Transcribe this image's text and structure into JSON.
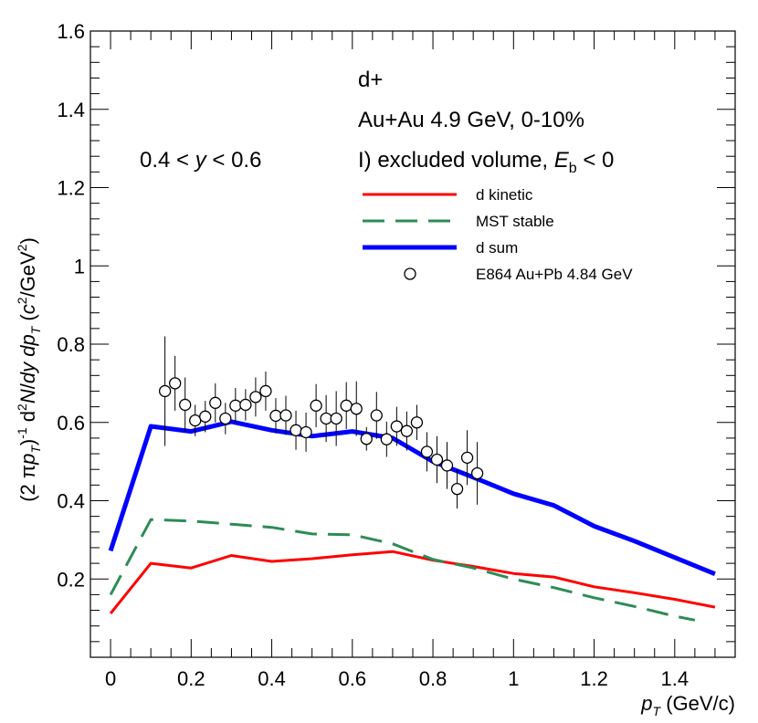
{
  "chart_data": {
    "type": "line",
    "annotations": {
      "line1": "d+",
      "line2": "Au+Au 4.9 GeV, 0-10%",
      "line3_prefix": "I) excluded volume, ",
      "line3_E": "E",
      "line3_b": "b",
      "line3_suffix": " < 0",
      "rapidity": {
        "pre": "0.4 < ",
        "var": "y",
        "post": " < 0.6"
      }
    },
    "xlabel": {
      "var": "p",
      "sub": "T",
      "unit": " (GeV/c)"
    },
    "ylabel": "(2 πpT)-1 d2N/dy dpT (c2/GeV2)",
    "xlim": [
      -0.05,
      1.55
    ],
    "ylim": [
      0,
      1.6
    ],
    "x_ticks": [
      {
        "v": 0,
        "label": "0"
      },
      {
        "v": 0.2,
        "label": "0.2"
      },
      {
        "v": 0.4,
        "label": "0.4"
      },
      {
        "v": 0.6,
        "label": "0.6"
      },
      {
        "v": 0.8,
        "label": "0.8"
      },
      {
        "v": 1.0,
        "label": "1"
      },
      {
        "v": 1.2,
        "label": "1.2"
      },
      {
        "v": 1.4,
        "label": "1.4"
      }
    ],
    "y_ticks": [
      {
        "v": 0.2,
        "label": "0.2"
      },
      {
        "v": 0.4,
        "label": "0.4"
      },
      {
        "v": 0.6,
        "label": "0.6"
      },
      {
        "v": 0.8,
        "label": "0.8"
      },
      {
        "v": 1.0,
        "label": "1"
      },
      {
        "v": 1.2,
        "label": "1.2"
      },
      {
        "v": 1.4,
        "label": "1.4"
      },
      {
        "v": 1.6,
        "label": "1.6"
      }
    ],
    "legend_position": "top-right",
    "series": [
      {
        "name": "d kinetic",
        "style": "solid",
        "color": "#ff0000",
        "x": [
          0.0,
          0.1,
          0.2,
          0.3,
          0.4,
          0.5,
          0.6,
          0.7,
          0.8,
          0.9,
          1.0,
          1.1,
          1.2,
          1.3,
          1.4,
          1.5
        ],
        "y": [
          0.112,
          0.24,
          0.228,
          0.26,
          0.245,
          0.252,
          0.262,
          0.27,
          0.248,
          0.232,
          0.214,
          0.205,
          0.18,
          0.165,
          0.148,
          0.128
        ]
      },
      {
        "name": "MST stable",
        "style": "dashed",
        "color": "#2e8b57",
        "x": [
          0.0,
          0.1,
          0.2,
          0.3,
          0.4,
          0.5,
          0.6,
          0.7,
          0.8,
          0.9,
          1.0,
          1.1,
          1.2,
          1.3,
          1.4,
          1.45
        ],
        "y": [
          0.16,
          0.352,
          0.348,
          0.34,
          0.332,
          0.315,
          0.313,
          0.29,
          0.25,
          0.228,
          0.2,
          0.178,
          0.152,
          0.13,
          0.105,
          0.095
        ]
      },
      {
        "name": "d sum",
        "style": "solid-thick",
        "color": "#0000ff",
        "x": [
          0.0,
          0.1,
          0.2,
          0.3,
          0.4,
          0.5,
          0.6,
          0.7,
          0.8,
          0.9,
          1.0,
          1.1,
          1.2,
          1.3,
          1.4,
          1.5
        ],
        "y": [
          0.272,
          0.59,
          0.577,
          0.602,
          0.58,
          0.565,
          0.577,
          0.56,
          0.5,
          0.46,
          0.418,
          0.388,
          0.335,
          0.297,
          0.255,
          0.213
        ]
      }
    ],
    "markers": {
      "name": "E864 Au+Pb 4.84 GeV",
      "points": [
        {
          "x": 0.135,
          "y": 0.68,
          "err": 0.14
        },
        {
          "x": 0.16,
          "y": 0.7,
          "err": 0.07
        },
        {
          "x": 0.185,
          "y": 0.645,
          "err": 0.07
        },
        {
          "x": 0.21,
          "y": 0.605,
          "err": 0.04
        },
        {
          "x": 0.235,
          "y": 0.615,
          "err": 0.04
        },
        {
          "x": 0.26,
          "y": 0.65,
          "err": 0.05
        },
        {
          "x": 0.285,
          "y": 0.61,
          "err": 0.04
        },
        {
          "x": 0.31,
          "y": 0.643,
          "err": 0.045
        },
        {
          "x": 0.335,
          "y": 0.645,
          "err": 0.04
        },
        {
          "x": 0.36,
          "y": 0.665,
          "err": 0.05
        },
        {
          "x": 0.385,
          "y": 0.68,
          "err": 0.05
        },
        {
          "x": 0.41,
          "y": 0.617,
          "err": 0.045
        },
        {
          "x": 0.435,
          "y": 0.618,
          "err": 0.05
        },
        {
          "x": 0.46,
          "y": 0.58,
          "err": 0.05
        },
        {
          "x": 0.485,
          "y": 0.575,
          "err": 0.05
        },
        {
          "x": 0.51,
          "y": 0.643,
          "err": 0.055
        },
        {
          "x": 0.535,
          "y": 0.61,
          "err": 0.06
        },
        {
          "x": 0.56,
          "y": 0.61,
          "err": 0.07
        },
        {
          "x": 0.585,
          "y": 0.643,
          "err": 0.06
        },
        {
          "x": 0.61,
          "y": 0.635,
          "err": 0.07
        },
        {
          "x": 0.635,
          "y": 0.558,
          "err": 0.03
        },
        {
          "x": 0.66,
          "y": 0.618,
          "err": 0.06
        },
        {
          "x": 0.685,
          "y": 0.557,
          "err": 0.045
        },
        {
          "x": 0.71,
          "y": 0.59,
          "err": 0.05
        },
        {
          "x": 0.735,
          "y": 0.578,
          "err": 0.05
        },
        {
          "x": 0.76,
          "y": 0.6,
          "err": 0.045
        },
        {
          "x": 0.785,
          "y": 0.525,
          "err": 0.05
        },
        {
          "x": 0.81,
          "y": 0.505,
          "err": 0.06
        },
        {
          "x": 0.835,
          "y": 0.49,
          "err": 0.06
        },
        {
          "x": 0.86,
          "y": 0.43,
          "err": 0.05
        },
        {
          "x": 0.885,
          "y": 0.51,
          "err": 0.07
        },
        {
          "x": 0.91,
          "y": 0.47,
          "err": 0.08
        }
      ]
    }
  }
}
